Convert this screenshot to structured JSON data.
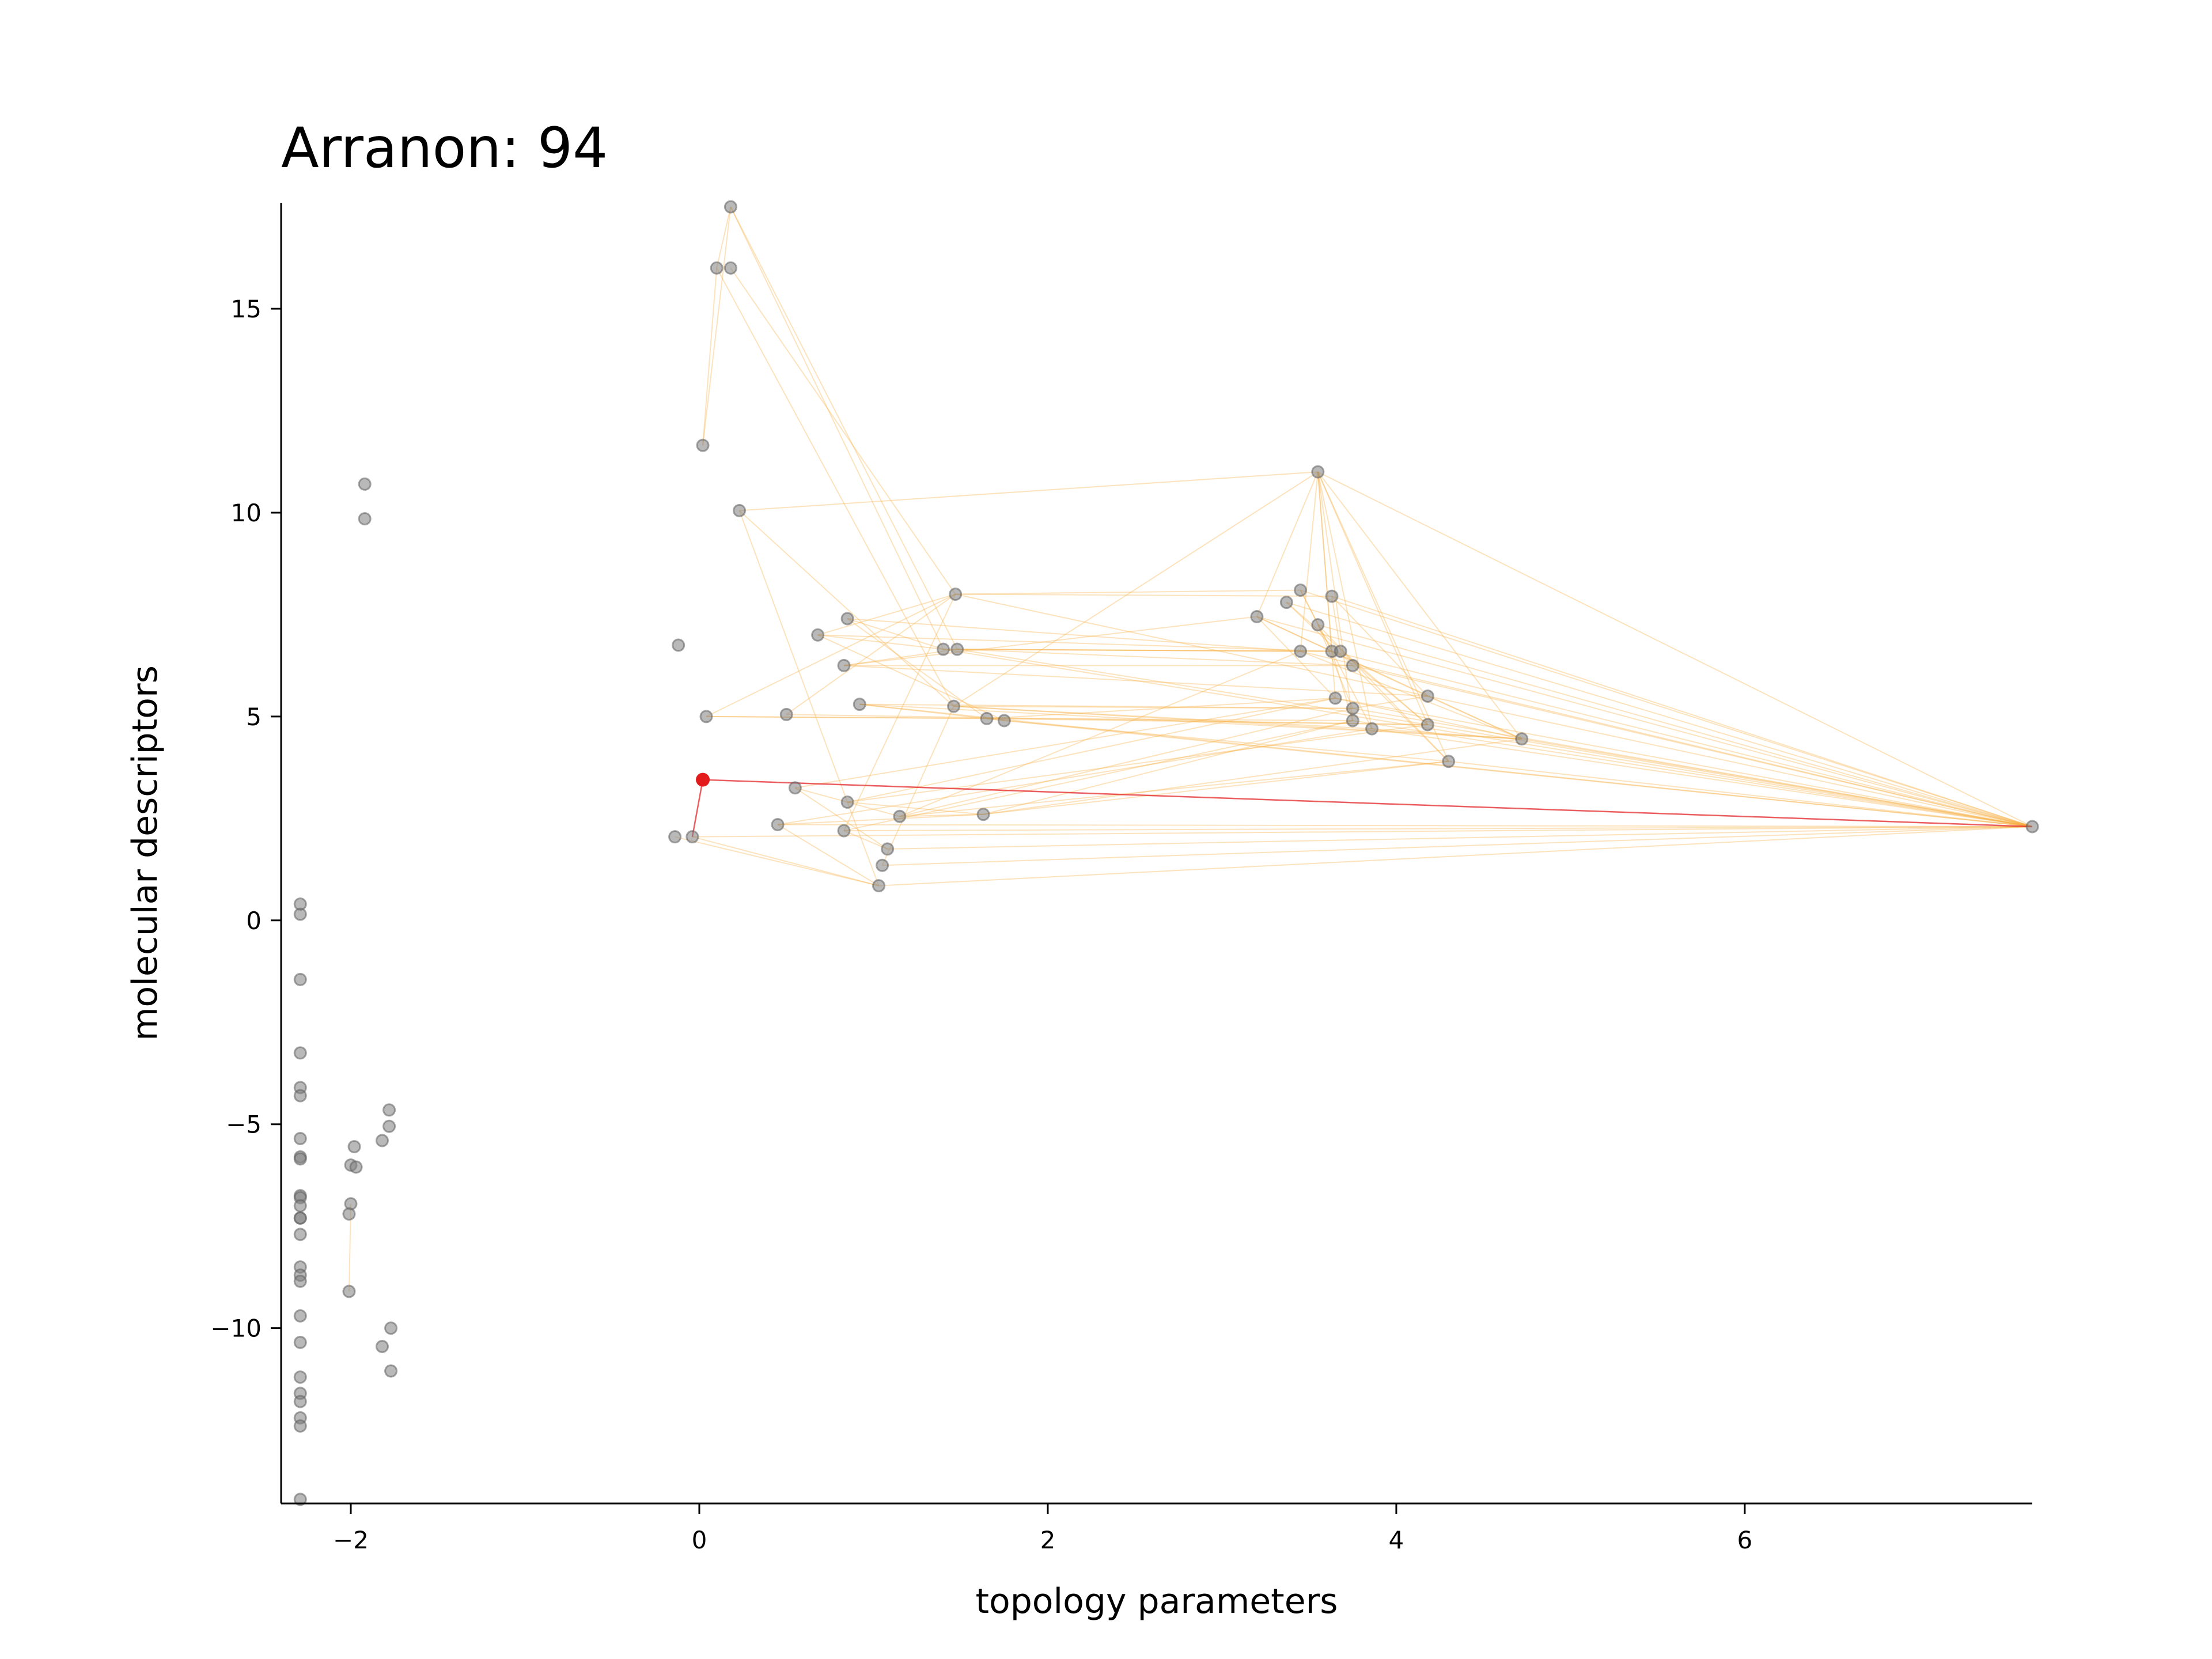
{
  "chart_data": {
    "type": "scatter",
    "title": "Arranon: 94",
    "xlabel": "topology parameters",
    "ylabel": "molecular descriptors",
    "xlim": [
      -2.4,
      7.65
    ],
    "ylim": [
      -14.3,
      17.6
    ],
    "xticks": [
      -2,
      0,
      2,
      4,
      6
    ],
    "xtick_labels": [
      "−2",
      "0",
      "2",
      "4",
      "6"
    ],
    "yticks": [
      -10,
      -5,
      0,
      5,
      10,
      15
    ],
    "ytick_labels": [
      "−10",
      "−5",
      "0",
      "5",
      "10",
      "15"
    ],
    "grid": false,
    "colors": {
      "points": "#808080",
      "edges": "#f5b041",
      "highlight": "#e31a1c"
    },
    "highlight_point": {
      "x": 0.02,
      "y": 3.45
    },
    "highlight_edges": [
      [
        [
          0.02,
          3.45
        ],
        [
          7.65,
          2.3
        ]
      ],
      [
        [
          0.02,
          3.45
        ],
        [
          -0.04,
          2.05
        ]
      ]
    ],
    "points": [
      [
        0.18,
        17.5
      ],
      [
        0.1,
        16.0
      ],
      [
        0.18,
        16.0
      ],
      [
        0.02,
        11.65
      ],
      [
        0.23,
        10.05
      ],
      [
        3.55,
        11.0
      ],
      [
        -0.12,
        6.75
      ],
      [
        0.04,
        5.0
      ],
      [
        0.5,
        5.05
      ],
      [
        0.55,
        3.25
      ],
      [
        0.68,
        7.0
      ],
      [
        0.85,
        7.4
      ],
      [
        0.83,
        6.25
      ],
      [
        0.92,
        5.3
      ],
      [
        0.85,
        2.9
      ],
      [
        0.83,
        2.2
      ],
      [
        1.08,
        1.75
      ],
      [
        1.15,
        2.55
      ],
      [
        1.05,
        1.35
      ],
      [
        1.03,
        0.85
      ],
      [
        0.45,
        2.35
      ],
      [
        -0.14,
        2.05
      ],
      [
        -0.04,
        2.05
      ],
      [
        1.47,
        8.0
      ],
      [
        1.4,
        6.65
      ],
      [
        1.48,
        6.65
      ],
      [
        1.46,
        5.25
      ],
      [
        1.65,
        4.95
      ],
      [
        1.75,
        4.9
      ],
      [
        1.63,
        2.6
      ],
      [
        3.2,
        7.45
      ],
      [
        3.37,
        7.8
      ],
      [
        3.45,
        8.1
      ],
      [
        3.55,
        7.25
      ],
      [
        3.63,
        7.95
      ],
      [
        3.45,
        6.6
      ],
      [
        3.63,
        6.6
      ],
      [
        3.68,
        6.6
      ],
      [
        3.75,
        6.25
      ],
      [
        3.65,
        5.45
      ],
      [
        3.75,
        5.2
      ],
      [
        3.75,
        4.9
      ],
      [
        3.86,
        4.7
      ],
      [
        4.18,
        5.5
      ],
      [
        4.18,
        4.8
      ],
      [
        4.3,
        3.9
      ],
      [
        4.72,
        4.45
      ],
      [
        7.65,
        2.3
      ],
      [
        -1.92,
        10.7
      ],
      [
        -1.92,
        9.85
      ],
      [
        -2.29,
        0.4
      ],
      [
        -2.29,
        0.15
      ],
      [
        -2.29,
        -1.45
      ],
      [
        -2.29,
        -3.25
      ],
      [
        -2.29,
        -4.1
      ],
      [
        -2.29,
        -4.3
      ],
      [
        -2.29,
        -5.35
      ],
      [
        -2.29,
        -5.8
      ],
      [
        -2.29,
        -5.85
      ],
      [
        -2.29,
        -6.75
      ],
      [
        -2.29,
        -6.8
      ],
      [
        -2.29,
        -7.0
      ],
      [
        -2.29,
        -7.3
      ],
      [
        -2.29,
        -7.3
      ],
      [
        -2.29,
        -7.7
      ],
      [
        -2.29,
        -8.5
      ],
      [
        -2.29,
        -8.7
      ],
      [
        -2.29,
        -8.85
      ],
      [
        -2.29,
        -9.7
      ],
      [
        -2.29,
        -10.35
      ],
      [
        -2.29,
        -11.2
      ],
      [
        -2.29,
        -11.6
      ],
      [
        -2.29,
        -11.8
      ],
      [
        -2.29,
        -12.2
      ],
      [
        -2.29,
        -12.4
      ],
      [
        -2.29,
        -14.2
      ],
      [
        -1.98,
        -5.55
      ],
      [
        -2.0,
        -6.0
      ],
      [
        -1.97,
        -6.05
      ],
      [
        -2.0,
        -6.95
      ],
      [
        -2.01,
        -7.2
      ],
      [
        -2.01,
        -9.1
      ],
      [
        -1.78,
        -4.65
      ],
      [
        -1.78,
        -5.05
      ],
      [
        -1.82,
        -5.4
      ],
      [
        -1.77,
        -10.0
      ],
      [
        -1.82,
        -10.45
      ],
      [
        -1.77,
        -11.05
      ]
    ],
    "edges": [
      [
        [
          0.18,
          17.5
        ],
        [
          0.02,
          11.65
        ]
      ],
      [
        [
          0.18,
          17.5
        ],
        [
          0.1,
          16.0
        ]
      ],
      [
        [
          0.18,
          17.5
        ],
        [
          1.4,
          6.65
        ]
      ],
      [
        [
          0.18,
          17.5
        ],
        [
          1.48,
          6.65
        ]
      ],
      [
        [
          0.1,
          16.0
        ],
        [
          0.02,
          11.65
        ]
      ],
      [
        [
          0.18,
          16.0
        ],
        [
          1.47,
          8.0
        ]
      ],
      [
        [
          0.1,
          16.0
        ],
        [
          1.46,
          5.25
        ]
      ],
      [
        [
          0.23,
          10.05
        ],
        [
          3.55,
          11.0
        ]
      ],
      [
        [
          0.23,
          10.05
        ],
        [
          0.85,
          2.9
        ]
      ],
      [
        [
          0.23,
          10.05
        ],
        [
          1.46,
          5.25
        ]
      ],
      [
        [
          3.55,
          11.0
        ],
        [
          1.46,
          5.25
        ]
      ],
      [
        [
          3.55,
          11.0
        ],
        [
          3.2,
          7.45
        ]
      ],
      [
        [
          3.55,
          11.0
        ],
        [
          3.45,
          6.6
        ]
      ],
      [
        [
          3.55,
          11.0
        ],
        [
          3.65,
          5.45
        ]
      ],
      [
        [
          3.55,
          11.0
        ],
        [
          3.75,
          4.9
        ]
      ],
      [
        [
          3.55,
          11.0
        ],
        [
          4.18,
          4.8
        ]
      ],
      [
        [
          3.55,
          11.0
        ],
        [
          4.72,
          4.45
        ]
      ],
      [
        [
          3.55,
          11.0
        ],
        [
          7.65,
          2.3
        ]
      ],
      [
        [
          3.55,
          11.0
        ],
        [
          3.63,
          6.6
        ]
      ],
      [
        [
          3.55,
          11.0
        ],
        [
          3.86,
          4.7
        ]
      ],
      [
        [
          3.55,
          11.0
        ],
        [
          4.3,
          3.9
        ]
      ],
      [
        [
          0.68,
          7.0
        ],
        [
          1.47,
          8.0
        ]
      ],
      [
        [
          0.68,
          7.0
        ],
        [
          1.4,
          6.65
        ]
      ],
      [
        [
          0.68,
          7.0
        ],
        [
          3.63,
          6.6
        ]
      ],
      [
        [
          0.68,
          7.0
        ],
        [
          1.75,
          4.9
        ]
      ],
      [
        [
          0.85,
          7.4
        ],
        [
          1.4,
          6.65
        ]
      ],
      [
        [
          0.85,
          7.4
        ],
        [
          1.65,
          4.95
        ]
      ],
      [
        [
          0.85,
          7.4
        ],
        [
          3.45,
          6.6
        ]
      ],
      [
        [
          0.83,
          6.25
        ],
        [
          1.48,
          6.65
        ]
      ],
      [
        [
          0.83,
          6.25
        ],
        [
          3.2,
          7.45
        ]
      ],
      [
        [
          0.83,
          6.25
        ],
        [
          4.18,
          5.5
        ]
      ],
      [
        [
          0.92,
          5.3
        ],
        [
          1.75,
          4.9
        ]
      ],
      [
        [
          0.92,
          5.3
        ],
        [
          3.75,
          5.2
        ]
      ],
      [
        [
          0.92,
          5.3
        ],
        [
          4.72,
          4.45
        ]
      ],
      [
        [
          0.92,
          5.3
        ],
        [
          7.65,
          2.3
        ]
      ],
      [
        [
          1.47,
          8.0
        ],
        [
          3.45,
          8.1
        ]
      ],
      [
        [
          1.47,
          8.0
        ],
        [
          3.63,
          7.95
        ]
      ],
      [
        [
          1.47,
          8.0
        ],
        [
          0.83,
          2.2
        ]
      ],
      [
        [
          1.47,
          8.0
        ],
        [
          4.18,
          5.5
        ]
      ],
      [
        [
          1.4,
          6.65
        ],
        [
          3.63,
          6.6
        ]
      ],
      [
        [
          1.4,
          6.65
        ],
        [
          7.65,
          2.3
        ]
      ],
      [
        [
          1.48,
          6.65
        ],
        [
          3.75,
          6.25
        ]
      ],
      [
        [
          1.48,
          6.65
        ],
        [
          4.18,
          4.8
        ]
      ],
      [
        [
          1.46,
          5.25
        ],
        [
          3.75,
          5.2
        ]
      ],
      [
        [
          1.46,
          5.25
        ],
        [
          4.72,
          4.45
        ]
      ],
      [
        [
          1.46,
          5.25
        ],
        [
          1.05,
          1.35
        ]
      ],
      [
        [
          1.65,
          4.95
        ],
        [
          3.65,
          5.45
        ]
      ],
      [
        [
          1.65,
          4.95
        ],
        [
          7.65,
          2.3
        ]
      ],
      [
        [
          1.75,
          4.9
        ],
        [
          4.3,
          3.9
        ]
      ],
      [
        [
          0.04,
          5.0
        ],
        [
          1.65,
          4.95
        ]
      ],
      [
        [
          0.04,
          5.0
        ],
        [
          3.75,
          4.9
        ]
      ],
      [
        [
          0.04,
          5.0
        ],
        [
          1.47,
          8.0
        ]
      ],
      [
        [
          0.5,
          5.05
        ],
        [
          1.47,
          8.0
        ]
      ],
      [
        [
          0.5,
          5.05
        ],
        [
          4.18,
          4.8
        ]
      ],
      [
        [
          0.55,
          3.25
        ],
        [
          1.08,
          1.75
        ]
      ],
      [
        [
          0.55,
          3.25
        ],
        [
          1.15,
          2.55
        ]
      ],
      [
        [
          0.55,
          3.25
        ],
        [
          3.65,
          5.45
        ]
      ],
      [
        [
          0.85,
          2.9
        ],
        [
          1.63,
          2.6
        ]
      ],
      [
        [
          0.85,
          2.9
        ],
        [
          4.18,
          4.8
        ]
      ],
      [
        [
          0.85,
          2.9
        ],
        [
          1.03,
          0.85
        ]
      ],
      [
        [
          0.83,
          2.2
        ],
        [
          1.08,
          1.75
        ]
      ],
      [
        [
          0.83,
          2.2
        ],
        [
          7.65,
          2.3
        ]
      ],
      [
        [
          0.83,
          2.2
        ],
        [
          3.75,
          4.9
        ]
      ],
      [
        [
          1.15,
          2.55
        ],
        [
          4.3,
          3.9
        ]
      ],
      [
        [
          1.15,
          2.55
        ],
        [
          1.63,
          2.6
        ]
      ],
      [
        [
          1.15,
          2.55
        ],
        [
          3.45,
          6.6
        ]
      ],
      [
        [
          1.08,
          1.75
        ],
        [
          7.65,
          2.3
        ]
      ],
      [
        [
          1.05,
          1.35
        ],
        [
          7.65,
          2.3
        ]
      ],
      [
        [
          1.03,
          0.85
        ],
        [
          7.65,
          2.3
        ]
      ],
      [
        [
          1.03,
          0.85
        ],
        [
          0.45,
          2.35
        ]
      ],
      [
        [
          1.03,
          0.85
        ],
        [
          -0.04,
          2.05
        ]
      ],
      [
        [
          0.45,
          2.35
        ],
        [
          7.65,
          2.3
        ]
      ],
      [
        [
          0.45,
          2.35
        ],
        [
          1.63,
          2.6
        ]
      ],
      [
        [
          -0.04,
          2.05
        ],
        [
          7.65,
          2.3
        ]
      ],
      [
        [
          1.63,
          2.6
        ],
        [
          4.72,
          4.45
        ]
      ],
      [
        [
          1.63,
          2.6
        ],
        [
          3.75,
          4.9
        ]
      ],
      [
        [
          3.2,
          7.45
        ],
        [
          3.65,
          5.45
        ]
      ],
      [
        [
          3.2,
          7.45
        ],
        [
          4.18,
          5.5
        ]
      ],
      [
        [
          3.2,
          7.45
        ],
        [
          4.72,
          4.45
        ]
      ],
      [
        [
          3.37,
          7.8
        ],
        [
          3.75,
          6.25
        ]
      ],
      [
        [
          3.37,
          7.8
        ],
        [
          4.18,
          4.8
        ]
      ],
      [
        [
          3.45,
          8.1
        ],
        [
          3.63,
          6.6
        ]
      ],
      [
        [
          3.45,
          8.1
        ],
        [
          3.86,
          4.7
        ]
      ],
      [
        [
          3.55,
          7.25
        ],
        [
          3.75,
          5.2
        ]
      ],
      [
        [
          3.55,
          7.25
        ],
        [
          4.3,
          3.9
        ]
      ],
      [
        [
          3.63,
          7.95
        ],
        [
          3.68,
          6.6
        ]
      ],
      [
        [
          3.63,
          7.95
        ],
        [
          4.18,
          5.5
        ]
      ],
      [
        [
          3.45,
          6.6
        ],
        [
          4.72,
          4.45
        ]
      ],
      [
        [
          3.63,
          6.6
        ],
        [
          3.75,
          4.9
        ]
      ],
      [
        [
          3.68,
          6.6
        ],
        [
          4.18,
          4.8
        ]
      ],
      [
        [
          3.75,
          6.25
        ],
        [
          4.3,
          3.9
        ]
      ],
      [
        [
          3.65,
          5.45
        ],
        [
          4.72,
          4.45
        ]
      ],
      [
        [
          3.75,
          5.2
        ],
        [
          4.18,
          5.5
        ]
      ],
      [
        [
          3.86,
          4.7
        ],
        [
          4.72,
          4.45
        ]
      ],
      [
        [
          4.18,
          5.5
        ],
        [
          4.72,
          4.45
        ]
      ],
      [
        [
          3.2,
          7.45
        ],
        [
          7.65,
          2.3
        ]
      ],
      [
        [
          3.37,
          7.8
        ],
        [
          7.65,
          2.3
        ]
      ],
      [
        [
          3.45,
          8.1
        ],
        [
          7.65,
          2.3
        ]
      ],
      [
        [
          3.55,
          7.25
        ],
        [
          7.65,
          2.3
        ]
      ],
      [
        [
          3.63,
          7.95
        ],
        [
          7.65,
          2.3
        ]
      ],
      [
        [
          3.45,
          6.6
        ],
        [
          7.65,
          2.3
        ]
      ],
      [
        [
          3.63,
          6.6
        ],
        [
          7.65,
          2.3
        ]
      ],
      [
        [
          3.75,
          6.25
        ],
        [
          7.65,
          2.3
        ]
      ],
      [
        [
          3.65,
          5.45
        ],
        [
          7.65,
          2.3
        ]
      ],
      [
        [
          3.75,
          5.2
        ],
        [
          7.65,
          2.3
        ]
      ],
      [
        [
          3.75,
          4.9
        ],
        [
          7.65,
          2.3
        ]
      ],
      [
        [
          3.86,
          4.7
        ],
        [
          7.65,
          2.3
        ]
      ],
      [
        [
          4.18,
          5.5
        ],
        [
          7.65,
          2.3
        ]
      ],
      [
        [
          4.18,
          4.8
        ],
        [
          7.65,
          2.3
        ]
      ],
      [
        [
          4.3,
          3.9
        ],
        [
          7.65,
          2.3
        ]
      ],
      [
        [
          4.72,
          4.45
        ],
        [
          7.65,
          2.3
        ]
      ],
      [
        [
          1.4,
          6.65
        ],
        [
          3.45,
          6.6
        ]
      ],
      [
        [
          1.48,
          6.65
        ],
        [
          3.63,
          6.6
        ]
      ],
      [
        [
          0.83,
          6.25
        ],
        [
          3.75,
          6.25
        ]
      ],
      [
        [
          1.46,
          5.25
        ],
        [
          3.86,
          4.7
        ]
      ],
      [
        [
          1.65,
          4.95
        ],
        [
          4.18,
          4.8
        ]
      ],
      [
        [
          0.85,
          2.9
        ],
        [
          3.65,
          5.45
        ]
      ],
      [
        [
          1.15,
          2.55
        ],
        [
          3.75,
          5.2
        ]
      ],
      [
        [
          0.45,
          2.35
        ],
        [
          3.86,
          4.7
        ]
      ],
      [
        [
          1.63,
          2.6
        ],
        [
          4.3,
          3.9
        ]
      ],
      [
        [
          -0.14,
          2.05
        ],
        [
          1.03,
          0.85
        ]
      ],
      [
        [
          -2.01,
          -9.1
        ],
        [
          -2.0,
          -6.95
        ]
      ]
    ]
  }
}
